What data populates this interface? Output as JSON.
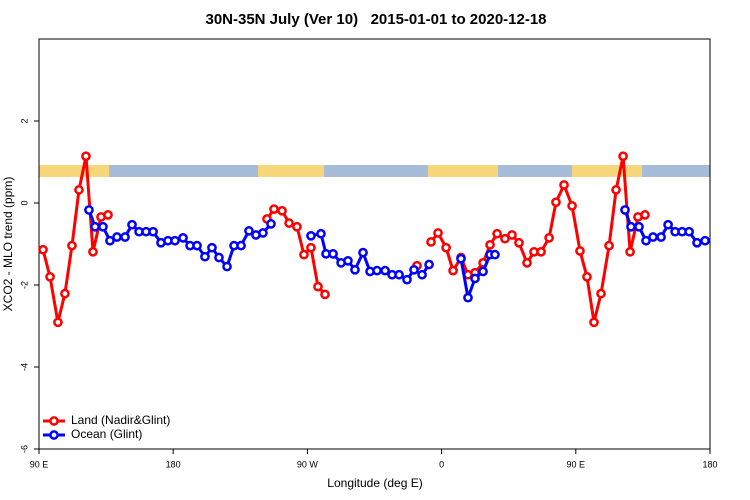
{
  "chart_data": {
    "type": "line",
    "title": "30N-35N July (Ver 10)   2015-01-01 to 2020-12-18",
    "x_label": "Longitude (deg E)",
    "y_label": "XCO2 - MLO trend (ppm)",
    "xlim": [
      90,
      540
    ],
    "xticks": [
      {
        "value": 90,
        "label": "90 E"
      },
      {
        "value": 180,
        "label": "180"
      },
      {
        "value": 270,
        "label": "90 W"
      },
      {
        "value": 360,
        "label": "0"
      },
      {
        "value": 450,
        "label": "90 E"
      },
      {
        "value": 540,
        "label": "180"
      }
    ],
    "ylim": [
      -6,
      4
    ],
    "yticks": [
      -6,
      -4,
      -2,
      0,
      2
    ],
    "legend": "bottom-left",
    "series": [
      {
        "name": "Land (Nadir&Glint)",
        "color": "#ff0000",
        "x": [
          92.7,
          97.4,
          102.7,
          107.4,
          112.1,
          116.8,
          121.5,
          126.2,
          131.6,
          136.3,
          null,
          242.9,
          247.6,
          253.0,
          257.7,
          263.0,
          267.7,
          272.4,
          277.1,
          281.8,
          null,
          343.5,
          null,
          352.9,
          357.6,
          363.0,
          367.7,
          373.0,
          377.7,
          382.4,
          387.8,
          392.5,
          397.2,
          402.5,
          407.2,
          411.9,
          417.3,
          422.0,
          426.7,
          432.1,
          436.7,
          442.1,
          447.5,
          452.8,
          457.5,
          462.2,
          466.9,
          472.3,
          477.0,
          481.7,
          486.4,
          491.7,
          496.4
        ],
        "values": [
          -1.14,
          -1.8,
          -2.91,
          -2.21,
          -1.04,
          0.32,
          1.14,
          -1.19,
          -0.34,
          -0.29,
          null,
          -0.39,
          -0.15,
          -0.19,
          -0.49,
          -0.58,
          -1.26,
          -1.09,
          -2.04,
          -2.23,
          null,
          -1.53,
          null,
          -0.95,
          -0.73,
          -1.09,
          -1.65,
          -1.33,
          -1.75,
          -1.7,
          -1.46,
          -1.02,
          -0.75,
          -0.87,
          -0.78,
          -0.97,
          -1.46,
          -1.19,
          -1.19,
          -0.85,
          0.02,
          0.44,
          -0.07,
          -1.17,
          -1.8,
          -2.91,
          -2.21,
          -1.04,
          0.32,
          1.14,
          -1.19,
          -0.34,
          -0.29
        ]
      },
      {
        "name": "Ocean (Glint)",
        "color": "#0000ff",
        "x": [
          123.5,
          127.6,
          132.9,
          137.6,
          142.3,
          147.7,
          152.4,
          157.1,
          161.8,
          166.5,
          171.8,
          176.5,
          181.2,
          186.6,
          191.3,
          196.0,
          201.3,
          206.0,
          210.7,
          216.1,
          220.8,
          225.5,
          230.8,
          235.5,
          240.2,
          245.6,
          null,
          272.4,
          279.1,
          282.5,
          287.2,
          292.6,
          297.2,
          301.9,
          307.3,
          312.0,
          316.7,
          322.1,
          326.8,
          331.5,
          336.8,
          341.5,
          346.9,
          351.6,
          null,
          373.0,
          377.7,
          382.4,
          387.8,
          392.5,
          395.8,
          null,
          483.0,
          487.0,
          492.4,
          497.1,
          501.8,
          507.2,
          511.9,
          516.6,
          521.3,
          526.0,
          531.3,
          536.7
        ],
        "values": [
          -0.17,
          -0.58,
          -0.58,
          -0.92,
          -0.83,
          -0.83,
          -0.53,
          -0.7,
          -0.7,
          -0.7,
          -0.97,
          -0.92,
          -0.92,
          -0.85,
          -1.04,
          -1.04,
          -1.31,
          -1.09,
          -1.33,
          -1.55,
          -1.04,
          -1.04,
          -0.68,
          -0.78,
          -0.73,
          -0.51,
          null,
          -0.8,
          -0.75,
          -1.24,
          -1.24,
          -1.46,
          -1.41,
          -1.63,
          -1.21,
          -1.67,
          -1.65,
          -1.65,
          -1.75,
          -1.75,
          -1.87,
          -1.63,
          -1.75,
          -1.5,
          null,
          -1.36,
          -2.31,
          -1.84,
          -1.67,
          -1.26,
          -1.26,
          null,
          -0.17,
          -0.58,
          -0.58,
          -0.92,
          -0.83,
          -0.83,
          -0.53,
          -0.7,
          -0.7,
          -0.7,
          -0.97,
          -0.92
        ]
      }
    ]
  }
}
